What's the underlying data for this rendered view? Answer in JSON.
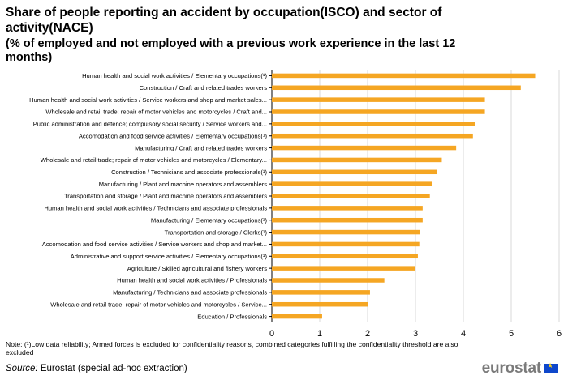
{
  "header": {
    "title": "Share of people reporting an accident by occupation(ISCO) and sector of activity(NACE)",
    "subtitle": "(% of employed and not employed with a previous work experience in the last 12 months)"
  },
  "footer": {
    "note": "Note: (¹)Low data reliability; Armed forces is excluded for confidentiality reasons, combined categories fulfilling the confidentiality threshold are also excluded",
    "source_label": "Source:",
    "source_text": " Eurostat (special ad-hoc extraction)",
    "logo_text": "eurostat"
  },
  "colors": {
    "bar": "#f5a623",
    "grid": "#d9d9d9",
    "axis": "#000000"
  },
  "chart_data": {
    "type": "bar",
    "orientation": "horizontal",
    "categories": [
      "Human health and social work activities / Elementary occupations(¹)",
      "Construction / Craft and related trades workers",
      "Human health and social work activities / Service workers and shop and market sales...",
      "Wholesale and retail trade; repair of motor vehicles and motorcycles / Craft and...",
      "Public administration and defence; compulsory social security / Service workers and...",
      "Accomodation and food service activities / Elementary occupations(¹)",
      "Manufacturing / Craft and related trades workers",
      "Wholesale and retail trade; repair of motor vehicles and motorcycles / Elementary...",
      "Construction / Technicians and associate professionals(¹)",
      "Manufacturing / Plant and machine operators and assemblers",
      "Transportation and storage / Plant and machine operators and assemblers",
      "Human health and social work activities / Technicians and associate professionals",
      "Manufacturing / Elementary occupations(¹)",
      "Transportation and storage / Clerks(¹)",
      "Accomodation and food service activities / Service workers and shop and market...",
      "Administrative and support service activities / Elementary occupations(¹)",
      "Agriculture / Skilled agricultural and fishery workers",
      "Human health and social work activities / Professionals",
      "Manufacturing / Technicians and associate professionals",
      "Wholesale and retail trade; repair of motor vehicles and motorcycles / Service...",
      "Education / Professionals"
    ],
    "values": [
      5.5,
      5.2,
      4.45,
      4.45,
      4.25,
      4.2,
      3.85,
      3.55,
      3.45,
      3.35,
      3.3,
      3.15,
      3.15,
      3.1,
      3.08,
      3.05,
      3.0,
      2.35,
      2.05,
      2.0,
      1.05
    ],
    "xlim": [
      0,
      6
    ],
    "xticks": [
      "0",
      "1",
      "2",
      "3",
      "4",
      "5",
      "6"
    ],
    "grid": true
  }
}
